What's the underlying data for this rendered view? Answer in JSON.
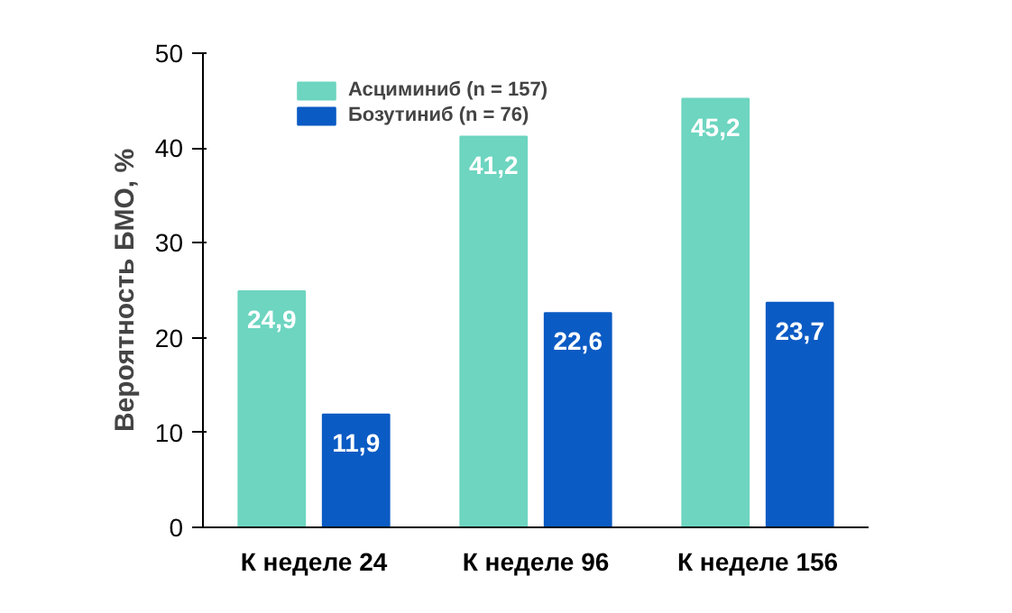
{
  "chart_data": {
    "type": "bar",
    "ylabel": "Вероятность БМО, %",
    "categories": [
      "К неделе 24",
      "К неделе 96",
      "К неделе 156"
    ],
    "series": [
      {
        "name": "Асциминиб (n = 157)",
        "color": "#6dd5c0",
        "values": [
          24.9,
          41.2,
          45.2
        ],
        "value_labels": [
          "24,9",
          "41,2",
          "45,2"
        ]
      },
      {
        "name": "Бозутиниб (n = 76)",
        "color": "#0b5bc4",
        "values": [
          11.9,
          22.6,
          23.7
        ],
        "value_labels": [
          "11,9",
          "22,6",
          "23,7"
        ]
      }
    ],
    "ylim": [
      0,
      50
    ],
    "yticks": [
      0,
      10,
      20,
      30,
      40,
      50
    ],
    "grid": false,
    "legend": "top left"
  }
}
